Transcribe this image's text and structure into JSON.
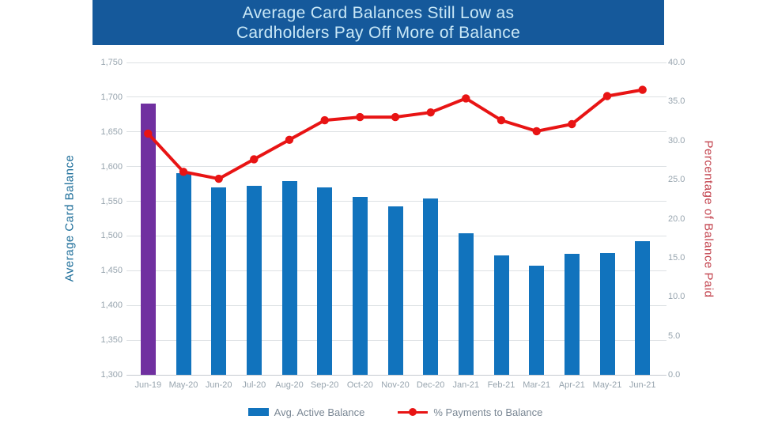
{
  "header": {
    "title_line1": "Average Card Balances Still Low as",
    "title_line2": "Cardholders Pay Off More of Balance"
  },
  "chart_data": {
    "type": "combo-bar-line",
    "categories": [
      "Jun-19",
      "May-20",
      "Jun-20",
      "Jul-20",
      "Aug-20",
      "Sep-20",
      "Oct-20",
      "Nov-20",
      "Dec-20",
      "Jan-21",
      "Feb-21",
      "Mar-21",
      "Apr-21",
      "May-21",
      "Jun-21"
    ],
    "series": [
      {
        "name": "Avg. Active Balance",
        "type": "bar",
        "axis": "left",
        "highlight_index": 0,
        "values": [
          1691,
          1591,
          1570,
          1572,
          1579,
          1570,
          1556,
          1543,
          1554,
          1504,
          1472,
          1457,
          1474,
          1475,
          1492
        ]
      },
      {
        "name": "% Payments to Balance",
        "type": "line",
        "axis": "right",
        "values": [
          30.9,
          26.0,
          25.1,
          27.6,
          30.1,
          32.6,
          33.0,
          33.0,
          33.6,
          35.4,
          32.6,
          31.2,
          32.1,
          35.7,
          36.5
        ]
      }
    ],
    "left_axis": {
      "title": "Average Card Balance",
      "min": 1300,
      "max": 1750,
      "step": 50,
      "ticks": [
        "1,750",
        "1,700",
        "1,650",
        "1,600",
        "1,550",
        "1,500",
        "1,450",
        "1,400",
        "1,350",
        "1,300"
      ]
    },
    "right_axis": {
      "title": "Percentage of Balance Paid",
      "min": 0.0,
      "max": 40.0,
      "step": 5.0,
      "ticks": [
        "40.0",
        "35.0",
        "30.0",
        "25.0",
        "20.0",
        "15.0",
        "10.0",
        "5.0",
        "0.0"
      ]
    },
    "legend": [
      {
        "label": "Avg. Active Balance",
        "swatch": "bar"
      },
      {
        "label": "% Payments to Balance",
        "swatch": "line"
      }
    ],
    "grid": "horizontal",
    "legend_position": "bottom"
  },
  "colors": {
    "header_bg": "#15599B",
    "title_text": "#C9E8F7",
    "bar_blue": "#1173BD",
    "bar_highlight_purple": "#7030A0",
    "line_red": "#E81414",
    "left_axis_title": "#1C6D99",
    "right_axis_title": "#C2404B",
    "tick_label": "#97A4AE",
    "gridline": "#DDE1E4"
  }
}
